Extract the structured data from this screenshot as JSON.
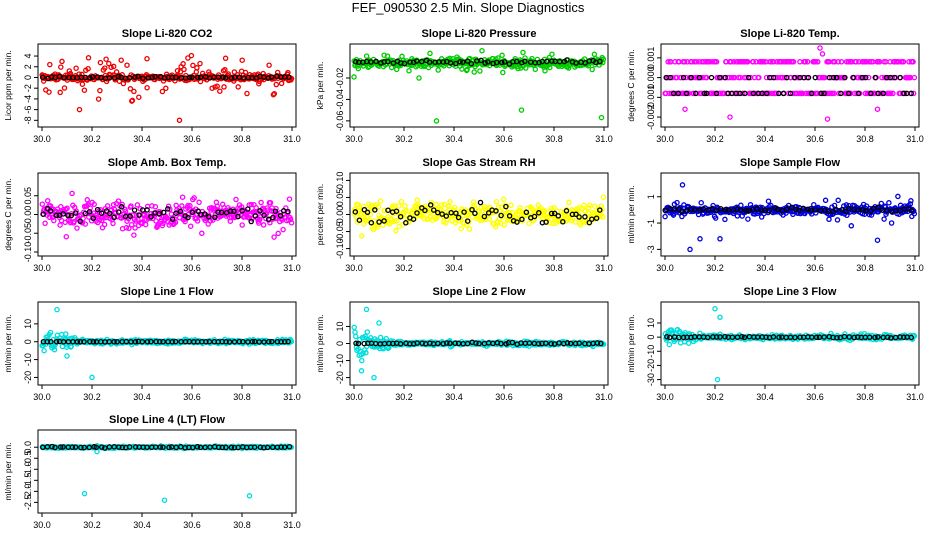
{
  "title": "FEF_090530  2.5 Min. Slope Diagnostics",
  "chart_data": [
    {
      "type": "scatter",
      "title": "Slope Li-820 CO2",
      "ylabel": "Licor ppm per min.",
      "xlim": [
        30.0,
        31.0
      ],
      "xticks": [
        30.0,
        30.2,
        30.4,
        30.6,
        30.8,
        31.0
      ],
      "xtick_labels": [
        "30.0",
        "30.2",
        "30.4",
        "30.6",
        "30.8",
        "31.0"
      ],
      "ylim": [
        -8.5,
        5.5
      ],
      "yticks": [
        -8,
        -6,
        -4,
        -2,
        0,
        2,
        4
      ],
      "ytick_labels": [
        "-8",
        "-6",
        "-4",
        "-2",
        "0",
        "2",
        "4"
      ],
      "color": "#ee0000",
      "series": [
        {
          "name": "all",
          "center": 0,
          "noise": 0.6,
          "spread": 4.5,
          "outliers": [
            [
              30.55,
              -8
            ],
            [
              30.15,
              -6
            ],
            [
              30.42,
              3.5
            ],
            [
              30.08,
              3
            ]
          ]
        },
        {
          "name": "avg",
          "color": "#000000",
          "center": 0,
          "noise": 0.2
        }
      ]
    },
    {
      "type": "scatter",
      "title": "Slope Li-820 Pressure",
      "ylabel": "kPa per min.",
      "xlim": [
        30.0,
        31.0
      ],
      "xticks": [
        30.0,
        30.2,
        30.4,
        30.6,
        30.8,
        31.0
      ],
      "xtick_labels": [
        "30.0",
        "30.2",
        "30.4",
        "30.6",
        "30.8",
        "31.0"
      ],
      "ylim": [
        -0.062,
        0.008
      ],
      "yticks": [
        -0.06,
        -0.04,
        -0.02
      ],
      "ytick_labels": [
        "-0.06",
        "-0.04",
        "-0.02"
      ],
      "color": "#00cc00",
      "series": [
        {
          "name": "all",
          "center": -0.006,
          "noise": 0.004,
          "spread": 0.01,
          "outliers": [
            [
              30.33,
              -0.06
            ],
            [
              30.67,
              -0.05
            ],
            [
              30.99,
              -0.057
            ],
            [
              30.0,
              -0.019
            ],
            [
              30.26,
              -0.02
            ]
          ]
        },
        {
          "name": "avg",
          "color": "#000000",
          "center": -0.005,
          "noise": 0.002
        }
      ]
    },
    {
      "type": "scatter",
      "title": "Slope Li-820 Temp.",
      "ylabel": "degrees C per min.",
      "xlim": [
        30.0,
        31.0
      ],
      "xticks": [
        30.0,
        30.2,
        30.4,
        30.6,
        30.8,
        31.0
      ],
      "xtick_labels": [
        "30.0",
        "30.2",
        "30.4",
        "30.6",
        "30.8",
        "31.0"
      ],
      "ylim": [
        -0.0023,
        0.0015
      ],
      "yticks": [
        -0.002,
        -0.001,
        0.0,
        0.001
      ],
      "ytick_labels": [
        "-0.002",
        "-0.001",
        "0.000",
        "0.001"
      ],
      "color": "#ff00ff",
      "series": [
        {
          "name": "all",
          "levels": [
            -0.0008,
            0,
            0.0008
          ],
          "outliers": [
            [
              30.62,
              0.0016
            ],
            [
              30.63,
              0.0012
            ],
            [
              30.65,
              -0.0021
            ],
            [
              30.26,
              -0.002
            ],
            [
              30.08,
              -0.0016
            ],
            [
              30.85,
              -0.0016
            ]
          ]
        },
        {
          "name": "avg",
          "color": "#000000",
          "levels": [
            -0.0008,
            0
          ]
        }
      ]
    },
    {
      "type": "scatter",
      "title": "Slope Amb. Box Temp.",
      "ylabel": "degrees C per min.",
      "xlim": [
        30.0,
        31.0
      ],
      "xticks": [
        30.0,
        30.2,
        30.4,
        30.6,
        30.8,
        31.0
      ],
      "xtick_labels": [
        "30.0",
        "30.2",
        "30.4",
        "30.6",
        "30.8",
        "31.0"
      ],
      "ylim": [
        -0.1,
        0.1
      ],
      "yticks": [
        -0.1,
        -0.05,
        0.0,
        0.05
      ],
      "ytick_labels": [
        "-0.10",
        "-0.05",
        "0.00",
        "0.05"
      ],
      "color": "#ff00ff",
      "series": [
        {
          "name": "all",
          "center": 0,
          "noise": 0.035,
          "spread": 0.05,
          "outliers": []
        },
        {
          "name": "avg",
          "color": "#000000",
          "center": 0,
          "noise": 0.02
        }
      ]
    },
    {
      "type": "scatter",
      "title": "Slope Gas Stream RH",
      "ylabel": "percent per min.",
      "xlim": [
        30.0,
        31.0
      ],
      "xticks": [
        30.0,
        30.2,
        30.4,
        30.6,
        30.8,
        31.0
      ],
      "xtick_labels": [
        "30.0",
        "30.2",
        "30.4",
        "30.6",
        "30.8",
        "31.0"
      ],
      "ylim": [
        -0.11,
        0.11
      ],
      "yticks": [
        -0.1,
        -0.05,
        0.0,
        0.05,
        0.1
      ],
      "ytick_labels": [
        "-0.10",
        "-0.05",
        "0.00",
        "0.05",
        "0.10"
      ],
      "color": "#ffff00",
      "series": [
        {
          "name": "all",
          "center": 0,
          "noise": 0.035,
          "spread": 0.05,
          "outliers": []
        },
        {
          "name": "avg",
          "color": "#000000",
          "center": 0,
          "noise": 0.03
        }
      ]
    },
    {
      "type": "scatter",
      "title": "Slope Sample Flow",
      "ylabel": "ml/min per min.",
      "xlim": [
        30.0,
        31.0
      ],
      "xticks": [
        30.0,
        30.2,
        30.4,
        30.6,
        30.8,
        31.0
      ],
      "xtick_labels": [
        "30.0",
        "30.2",
        "30.4",
        "30.6",
        "30.8",
        "31.0"
      ],
      "ylim": [
        -3.2,
        2.5
      ],
      "yticks": [
        -3,
        -1,
        1
      ],
      "ytick_labels": [
        "-3",
        "-1",
        "1"
      ],
      "color": "#0000dd",
      "series": [
        {
          "name": "all",
          "center": 0,
          "noise": 0.35,
          "spread": 1.0,
          "outliers": [
            [
              30.07,
              1.9
            ],
            [
              30.14,
              -2.2
            ],
            [
              30.1,
              -3
            ],
            [
              30.85,
              -2.3
            ],
            [
              30.22,
              -2.2
            ]
          ]
        },
        {
          "name": "avg",
          "color": "#000000",
          "center": 0,
          "noise": 0.15
        }
      ]
    },
    {
      "type": "scatter",
      "title": "Slope Line 1 Flow",
      "ylabel": "ml/min per min.",
      "xlim": [
        30.0,
        31.0
      ],
      "xticks": [
        30.0,
        30.2,
        30.4,
        30.6,
        30.8,
        31.0
      ],
      "xtick_labels": [
        "30.0",
        "30.2",
        "30.4",
        "30.6",
        "30.8",
        "31.0"
      ],
      "ylim": [
        -22,
        20
      ],
      "yticks": [
        -20,
        -10,
        0,
        10
      ],
      "ytick_labels": [
        "-20",
        "-10",
        "0",
        "10"
      ],
      "color": "#00dddd",
      "series": [
        {
          "name": "all",
          "center": 0,
          "noise": 1.2,
          "spread": 1.5,
          "early_spread": 8,
          "outliers": [
            [
              30.2,
              -20
            ],
            [
              30.06,
              18
            ],
            [
              30.1,
              -8
            ]
          ]
        },
        {
          "name": "avg",
          "color": "#000000",
          "center": 0,
          "noise": 0.1
        }
      ]
    },
    {
      "type": "scatter",
      "title": "Slope Line 2 Flow",
      "ylabel": "ml/min per min.",
      "xlim": [
        30.0,
        31.0
      ],
      "xticks": [
        30.0,
        30.2,
        30.4,
        30.6,
        30.8,
        31.0
      ],
      "xtick_labels": [
        "30.0",
        "30.2",
        "30.4",
        "30.6",
        "30.8",
        "31.0"
      ],
      "ylim": [
        -22,
        22
      ],
      "yticks": [
        -20,
        -10,
        0,
        10
      ],
      "ytick_labels": [
        "-20",
        "-10",
        "0",
        "10"
      ],
      "color": "#00dddd",
      "series": [
        {
          "name": "all",
          "center": 0,
          "noise": 1.2,
          "spread": 1.5,
          "early_spread": 10,
          "outliers": [
            [
              30.05,
              20
            ],
            [
              30.08,
              -20
            ],
            [
              30.1,
              12
            ],
            [
              30.03,
              -16
            ]
          ]
        },
        {
          "name": "avg",
          "color": "#000000",
          "center": 0,
          "noise": 0.5
        }
      ]
    },
    {
      "type": "scatter",
      "title": "Slope Line 3 Flow",
      "ylabel": "ml/min per min.",
      "xlim": [
        30.0,
        31.0
      ],
      "xticks": [
        30.0,
        30.2,
        30.4,
        30.6,
        30.8,
        31.0
      ],
      "xtick_labels": [
        "30.0",
        "30.2",
        "30.4",
        "30.6",
        "30.8",
        "31.0"
      ],
      "ylim": [
        -31,
        22
      ],
      "yticks": [
        -30,
        -20,
        -10,
        0,
        10
      ],
      "ytick_labels": [
        "-30",
        "-20",
        "-10",
        "0",
        "10"
      ],
      "color": "#00dddd",
      "series": [
        {
          "name": "all",
          "center": 0,
          "noise": 1.5,
          "spread": 2.5,
          "early_spread": 7,
          "outliers": [
            [
              30.21,
              -30
            ],
            [
              30.2,
              20
            ],
            [
              30.22,
              14
            ]
          ]
        },
        {
          "name": "avg",
          "color": "#000000",
          "center": 0,
          "noise": 0.5
        }
      ]
    },
    {
      "type": "scatter",
      "title": "Slope Line 4 (LT) Flow",
      "ylabel": "ml/min per min.",
      "xlim": [
        30.0,
        31.0
      ],
      "xticks": [
        30.0,
        30.2,
        30.4,
        30.6,
        30.8,
        31.0
      ],
      "xtick_labels": [
        "30.0",
        "30.2",
        "30.4",
        "30.6",
        "30.8",
        "31.0"
      ],
      "ylim": [
        -2.8,
        0.6
      ],
      "yticks": [
        -2.5,
        -2.0,
        -1.5,
        -1.0,
        -0.5,
        0.0
      ],
      "ytick_labels": [
        "-2.5",
        "-2.0",
        "-1.5",
        "-1.0",
        "-0.5",
        "0.0"
      ],
      "color": "#00dddd",
      "series": [
        {
          "name": "all",
          "center": 0,
          "noise": 0.04,
          "spread": 0.06,
          "outliers": [
            [
              30.17,
              -2.1
            ],
            [
              30.49,
              -2.4
            ],
            [
              30.83,
              -2.2
            ],
            [
              30.22,
              -0.2
            ]
          ]
        },
        {
          "name": "avg",
          "color": "#000000",
          "center": 0,
          "noise": 0.03
        }
      ]
    }
  ]
}
